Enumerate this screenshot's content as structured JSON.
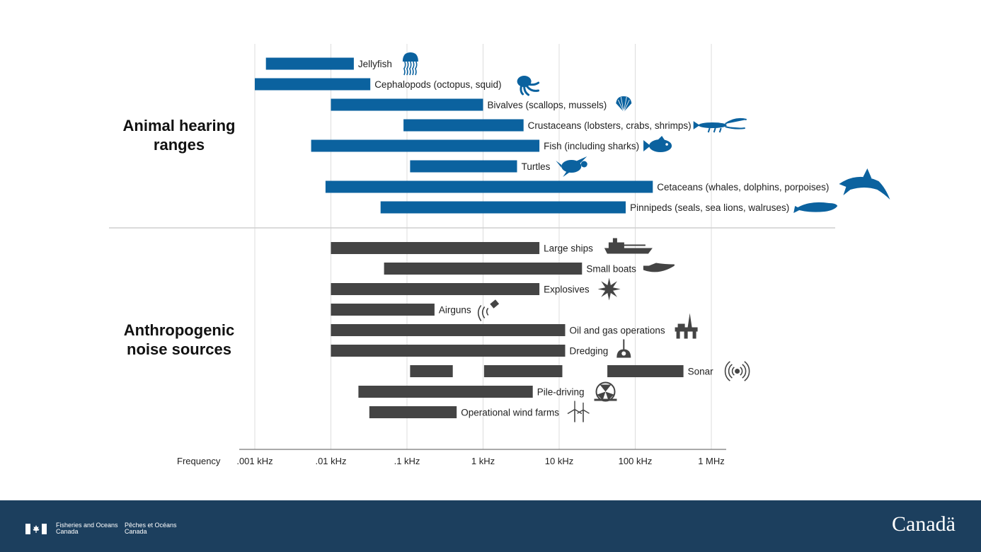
{
  "chart_data": {
    "type": "bar",
    "orientation": "horizontal-range",
    "xlabel": "Frequency",
    "x_scale": "log",
    "x_unit": "kHz",
    "xlim": [
      0.001,
      1000
    ],
    "x_ticks": [
      {
        "value": 0.001,
        "label": ".001 kHz"
      },
      {
        "value": 0.01,
        "label": ".01 kHz"
      },
      {
        "value": 0.1,
        "label": ".1 kHz"
      },
      {
        "value": 1,
        "label": "1 kHz"
      },
      {
        "value": 10,
        "label": "10 kHz"
      },
      {
        "value": 100,
        "label": "100 kHz"
      },
      {
        "value": 1000,
        "label": "1 MHz"
      }
    ],
    "grid": "vertical",
    "groups": [
      {
        "title_line1": "Animal hearing",
        "title_line2": "ranges",
        "color": "#0b629f",
        "series": [
          {
            "name": "Jellyfish",
            "icon": "jellyfish-icon",
            "ranges": [
              [
                0.0014,
                0.02
              ]
            ]
          },
          {
            "name": "Cephalopods (octopus, squid)",
            "icon": "octopus-icon",
            "ranges": [
              [
                0.001,
                0.033
              ]
            ]
          },
          {
            "name": "Bivalves (scallops, mussels)",
            "icon": "scallop-icon",
            "ranges": [
              [
                0.01,
                1
              ]
            ]
          },
          {
            "name": "Crustaceans (lobsters, crabs, shrimps)",
            "icon": "lobster-icon",
            "ranges": [
              [
                0.09,
                3.4
              ]
            ]
          },
          {
            "name": "Fish (including sharks)",
            "icon": "fish-icon",
            "ranges": [
              [
                0.0055,
                5.5
              ]
            ]
          },
          {
            "name": "Turtles",
            "icon": "turtle-icon",
            "ranges": [
              [
                0.11,
                2.8
              ]
            ]
          },
          {
            "name": "Cetaceans (whales, dolphins, porpoises)",
            "icon": "dolphin-icon",
            "ranges": [
              [
                0.0085,
                170
              ]
            ]
          },
          {
            "name": "Pinnipeds (seals, sea lions, walruses)",
            "icon": "seal-icon",
            "ranges": [
              [
                0.045,
                75
              ]
            ]
          }
        ]
      },
      {
        "title_line1": "Anthropogenic",
        "title_line2": "noise sources",
        "color": "#444444",
        "series": [
          {
            "name": "Large ships",
            "icon": "ship-icon",
            "ranges": [
              [
                0.01,
                5.5
              ]
            ]
          },
          {
            "name": "Small boats",
            "icon": "boat-icon",
            "ranges": [
              [
                0.05,
                20
              ]
            ]
          },
          {
            "name": "Explosives",
            "icon": "explosion-icon",
            "ranges": [
              [
                0.01,
                5.5
              ]
            ]
          },
          {
            "name": "Airguns",
            "icon": "airgun-icon",
            "ranges": [
              [
                0.01,
                0.23
              ]
            ]
          },
          {
            "name": "Oil and gas operations",
            "icon": "oil-rig-icon",
            "ranges": [
              [
                0.01,
                12
              ]
            ]
          },
          {
            "name": "Dredging",
            "icon": "dredging-icon",
            "ranges": [
              [
                0.01,
                12
              ]
            ]
          },
          {
            "name": "Sonar",
            "icon": "sonar-icon",
            "ranges": [
              [
                0.11,
                0.4
              ],
              [
                1.03,
                11
              ],
              [
                43,
                430
              ]
            ]
          },
          {
            "name": "Pile-driving",
            "icon": "pile-driving-icon",
            "ranges": [
              [
                0.023,
                4.5
              ]
            ]
          },
          {
            "name": "Operational wind farms",
            "icon": "wind-turbine-icon",
            "ranges": [
              [
                0.032,
                0.45
              ]
            ]
          }
        ]
      }
    ]
  },
  "footer": {
    "dept_en_line1": "Fisheries and Oceans",
    "dept_en_line2": "Canada",
    "dept_fr_line1": "Pêches et Océans",
    "dept_fr_line2": "Canada",
    "wordmark": "Canadä",
    "background_color": "#1c3f5e"
  }
}
